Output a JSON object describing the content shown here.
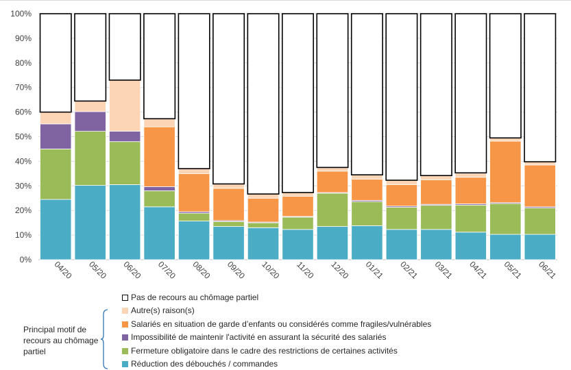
{
  "chart_data": {
    "type": "stacked-bar-100",
    "categories": [
      "04/20",
      "05/20",
      "06/20",
      "07/20",
      "08/20",
      "09/20",
      "10/20",
      "11/20",
      "12/20",
      "01/21",
      "02/21",
      "03/21",
      "04/21",
      "05/21",
      "06/21"
    ],
    "y_ticks": [
      "0%",
      "10%",
      "20%",
      "30%",
      "40%",
      "50%",
      "60%",
      "70%",
      "80%",
      "90%",
      "100%"
    ],
    "ylim": [
      0,
      100
    ],
    "grid": true,
    "legend_position": "bottom",
    "series": [
      {
        "name": "Réduction des débouchés / commandes",
        "color": "#4bacc6",
        "values": [
          24.5,
          30.2,
          30.5,
          21.5,
          15.7,
          13.5,
          13.0,
          12.3,
          13.5,
          13.8,
          12.3,
          12.3,
          11.2,
          10.3,
          10.3
        ]
      },
      {
        "name": "Fermeture obligatoire dans le cadre des restrictions de certaines activités",
        "color": "#9bbb59",
        "values": [
          20.5,
          22.0,
          17.5,
          6.5,
          3.2,
          2.0,
          2.0,
          5.0,
          13.5,
          9.8,
          9.0,
          9.8,
          11.0,
          12.5,
          10.7
        ]
      },
      {
        "name": "Impossibilité de maintenir l'activité en assurant la sécurité des salariés",
        "color": "#8064a2",
        "values": [
          10.2,
          8.0,
          4.2,
          1.7,
          0.6,
          0.4,
          0.3,
          0.3,
          0.3,
          0.5,
          0.5,
          0.4,
          0.5,
          0.4,
          0.5
        ]
      },
      {
        "name": "Salariés en situation de garde d’enfants ou considérés comme fragiles/vulnérables",
        "color": "#f79646",
        "values": [
          0,
          0,
          0,
          24.3,
          15.5,
          13.1,
          9.7,
          8.2,
          8.7,
          8.6,
          8.7,
          10.0,
          10.8,
          25.0,
          17.0
        ]
      },
      {
        "name": "Autre(s) raison(s)",
        "color": "#fbd5b5",
        "values": [
          4.8,
          4.3,
          20.8,
          3.3,
          2.0,
          1.8,
          1.7,
          1.5,
          1.5,
          1.8,
          1.8,
          1.7,
          1.8,
          1.3,
          1.3
        ]
      },
      {
        "name": "Pas de recours au chômage partiel",
        "color": "#ffffff",
        "values": [
          40.0,
          35.5,
          27.0,
          42.7,
          63.0,
          69.2,
          73.3,
          72.7,
          62.5,
          65.5,
          67.7,
          65.8,
          64.7,
          50.5,
          60.2
        ]
      }
    ]
  },
  "side_note": "Principal motif de recours au chômage partiel"
}
